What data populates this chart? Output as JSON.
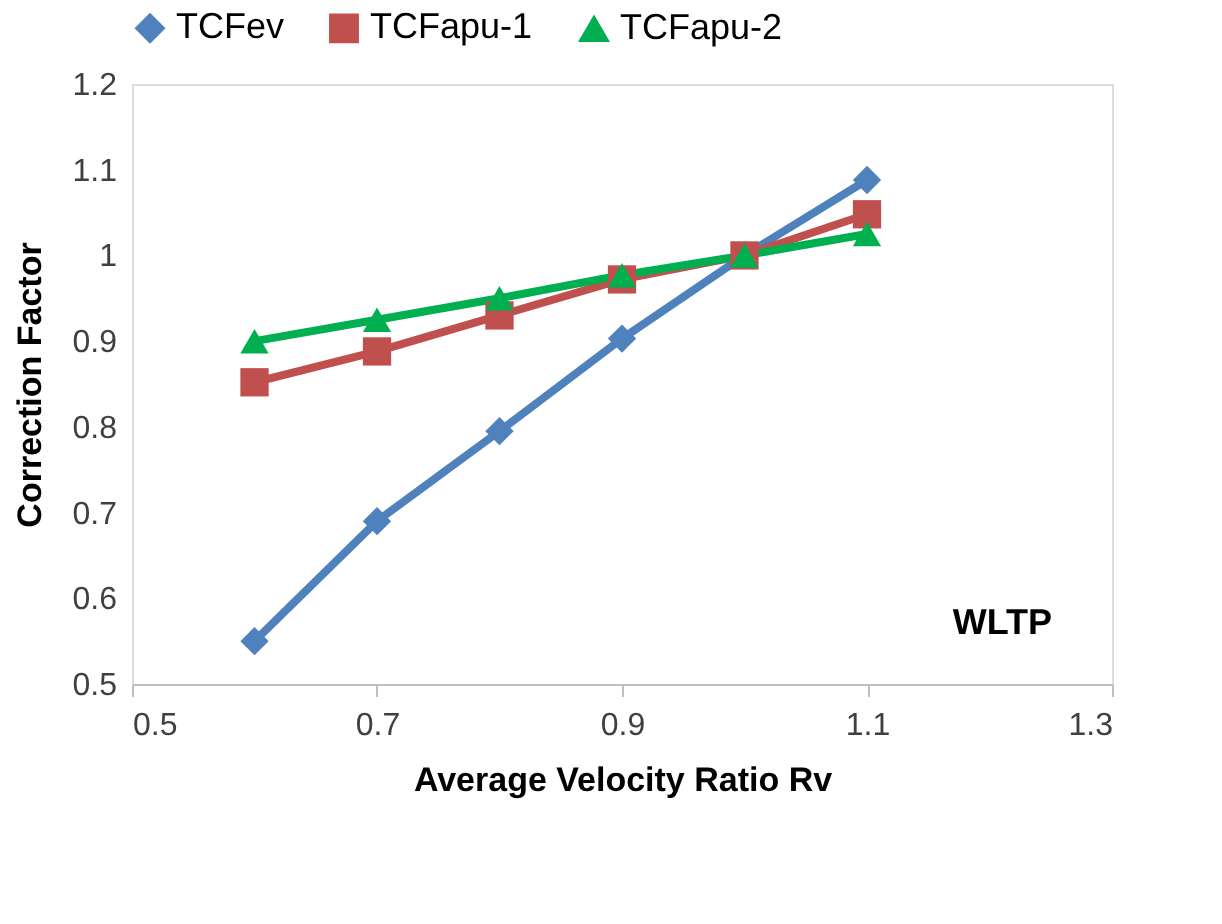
{
  "chart_data": {
    "type": "line",
    "xlabel": "Average Velocity Ratio Rv",
    "ylabel": "Correction Factor",
    "x": [
      0.6,
      0.7,
      0.8,
      0.9,
      1.0,
      1.1
    ],
    "series": [
      {
        "name": "TCFev",
        "color": "#4f81bd",
        "marker": "diamond",
        "values": [
          0.55,
          0.69,
          0.795,
          0.903,
          1.0,
          1.088
        ]
      },
      {
        "name": "TCFapu-1",
        "color": "#c0504d",
        "marker": "square",
        "values": [
          0.852,
          0.888,
          0.93,
          0.972,
          1.0,
          1.048
        ]
      },
      {
        "name": "TCFapu-2",
        "color": "#00b050",
        "marker": "triangle",
        "values": [
          0.9,
          0.925,
          0.95,
          0.977,
          1.0,
          1.025
        ]
      }
    ],
    "xlim": [
      0.5,
      1.3
    ],
    "xticks": [
      0.5,
      0.7,
      0.9,
      1.1,
      1.3
    ],
    "ylim": [
      0.5,
      1.2
    ],
    "yticks": [
      0.5,
      0.6,
      0.7,
      0.8,
      0.9,
      {
        "value": 1,
        "label": "1"
      },
      1.1,
      1.2
    ],
    "grid": false,
    "legend": "top",
    "line_style": "solid",
    "annotations": [
      "WLTP"
    ]
  }
}
